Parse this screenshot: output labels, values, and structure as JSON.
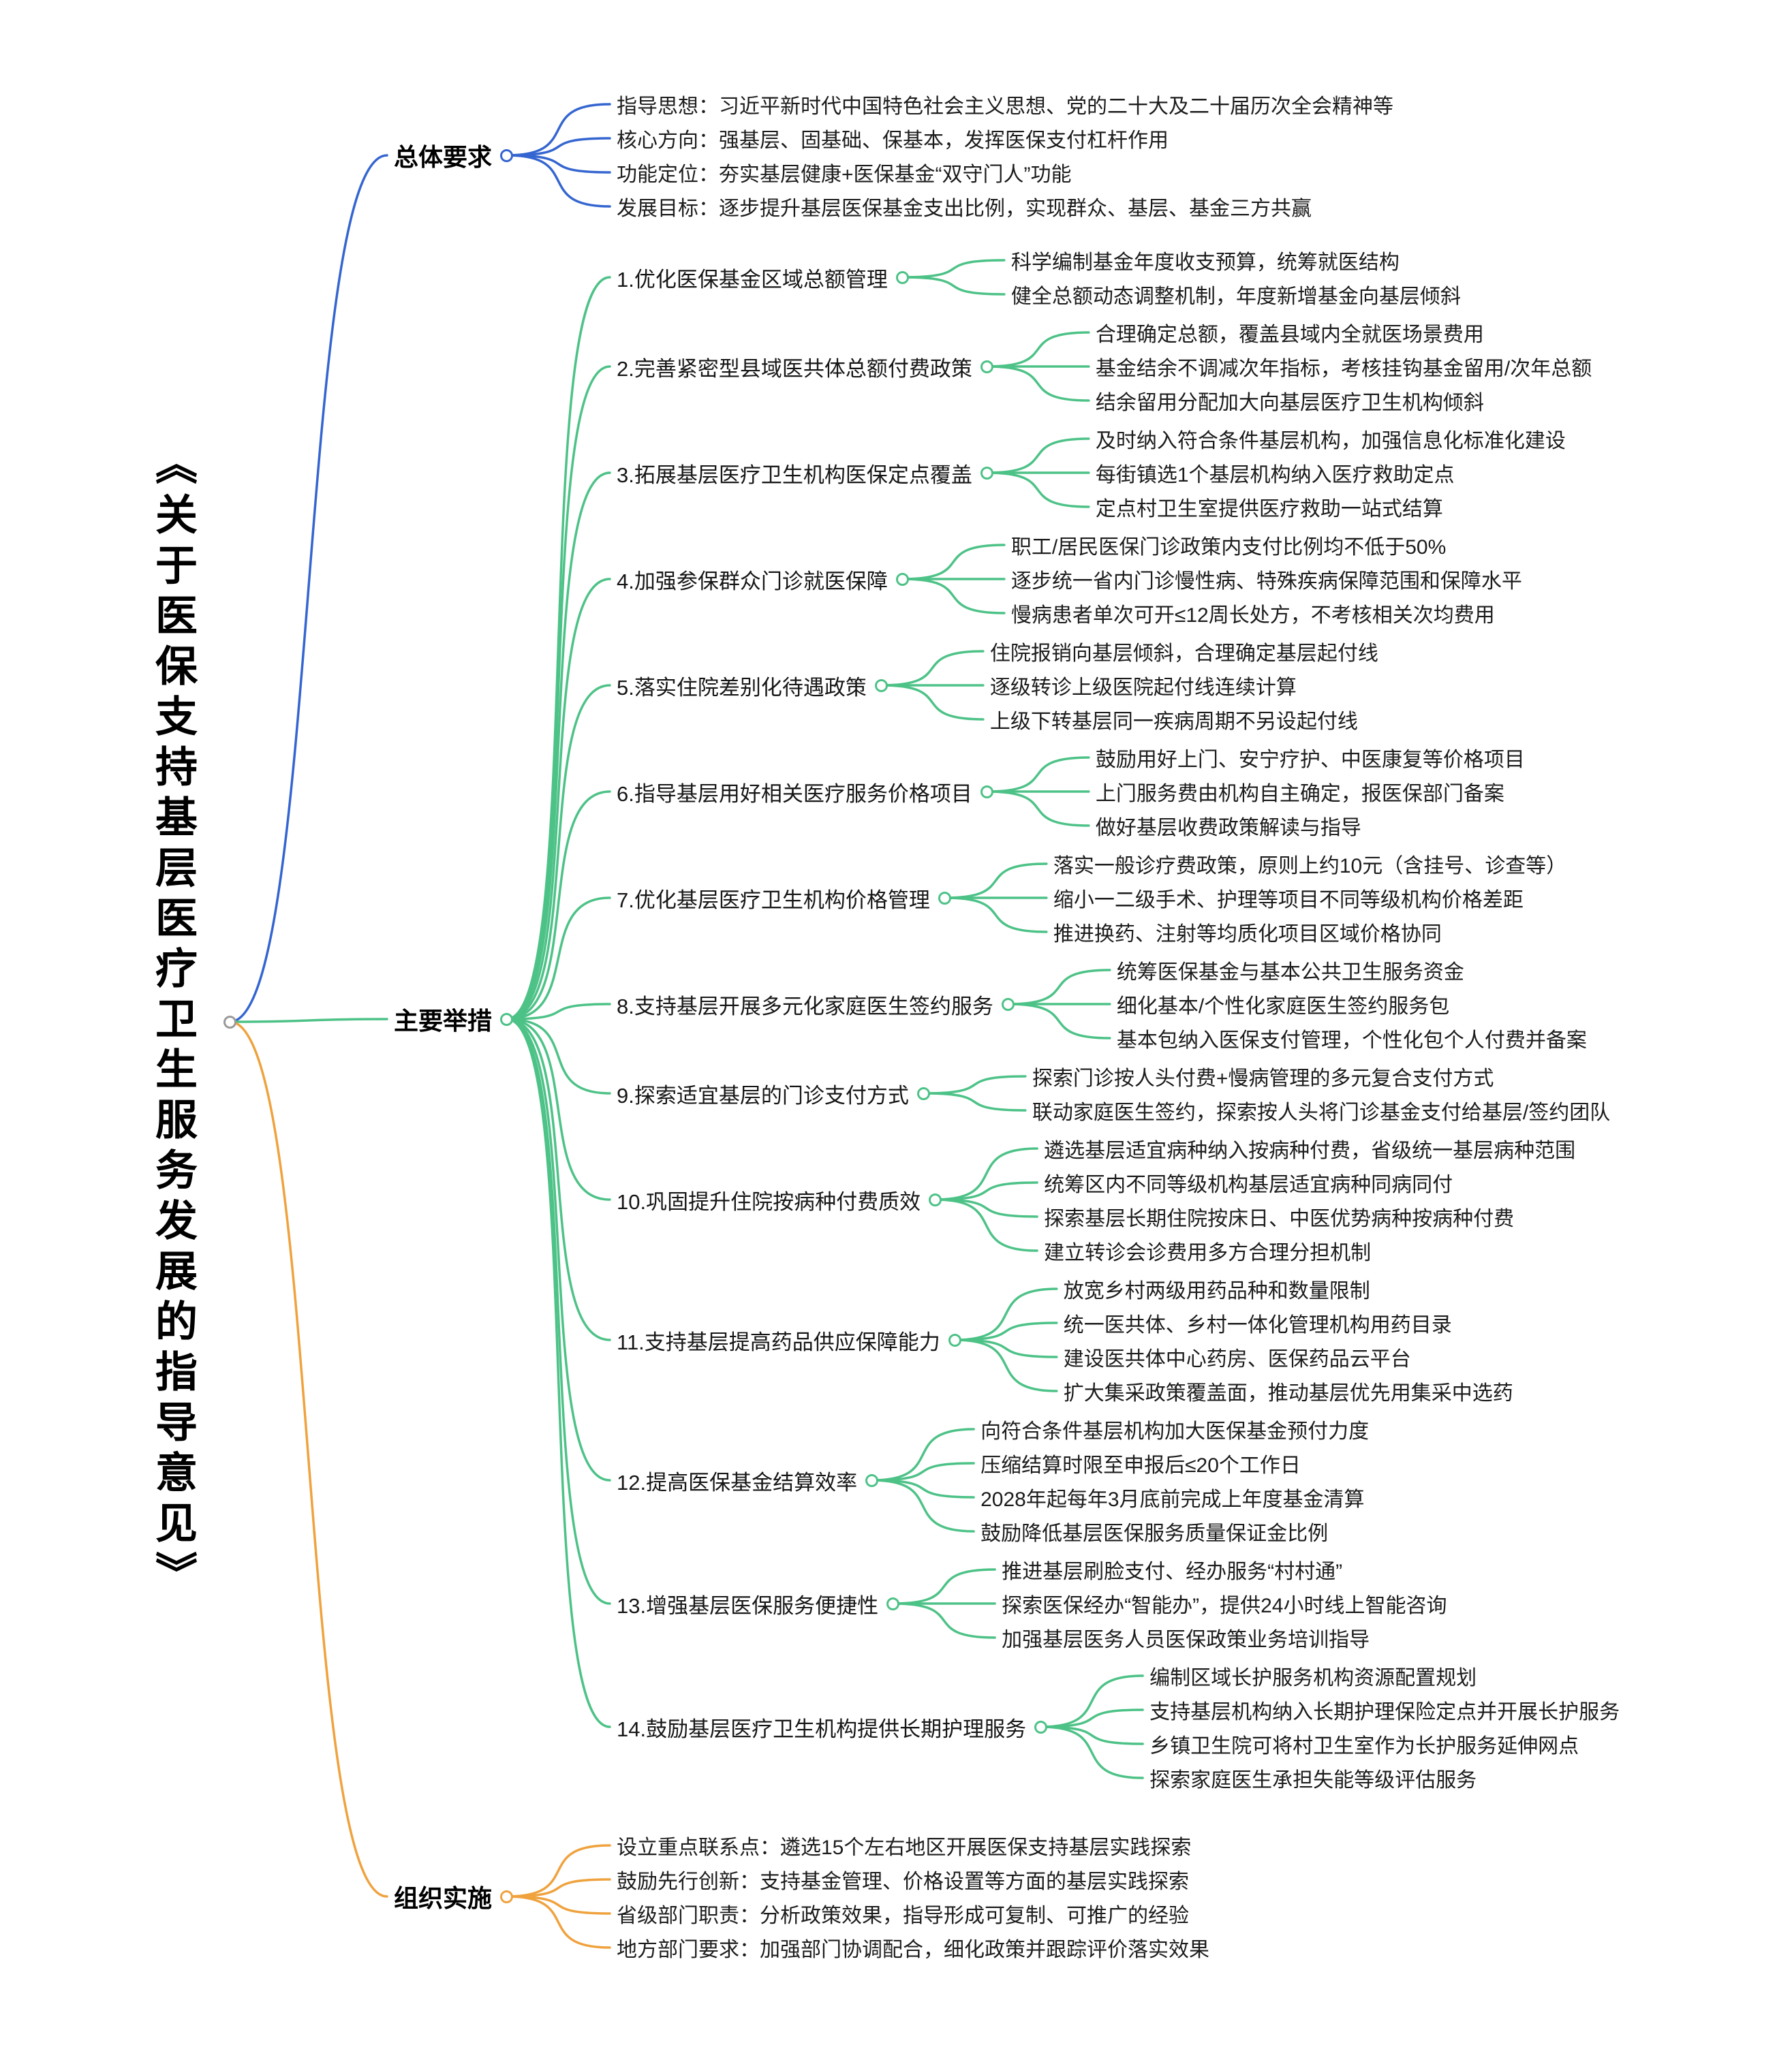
{
  "root": {
    "title": "《关于医保支持基层医疗卫生服务发展的指导意见》"
  },
  "colors": {
    "blue": "#3465d0",
    "green": "#4dc287",
    "orange": "#efa23d"
  },
  "branches": [
    {
      "id": "overall-requirements",
      "label": "总体要求",
      "color": "blue",
      "children": [
        {
          "label": "指导思想：习近平新时代中国特色社会主义思想、党的二十大及二十届历次全会精神等"
        },
        {
          "label": "核心方向：强基层、固基础、保基本，发挥医保支付杠杆作用"
        },
        {
          "label": "功能定位：夯实基层健康+医保基金“双守门人”功能"
        },
        {
          "label": "发展目标：逐步提升基层医保基金支出比例，实现群众、基层、基金三方共赢"
        }
      ]
    },
    {
      "id": "main-measures",
      "label": "主要举措",
      "color": "green",
      "children": [
        {
          "label": "1.优化医保基金区域总额管理",
          "children": [
            {
              "label": "科学编制基金年度收支预算，统筹就医结构"
            },
            {
              "label": "健全总额动态调整机制，年度新增基金向基层倾斜"
            }
          ]
        },
        {
          "label": "2.完善紧密型县域医共体总额付费政策",
          "children": [
            {
              "label": "合理确定总额，覆盖县域内全就医场景费用"
            },
            {
              "label": "基金结余不调减次年指标，考核挂钩基金留用/次年总额"
            },
            {
              "label": "结余留用分配加大向基层医疗卫生机构倾斜"
            }
          ]
        },
        {
          "label": "3.拓展基层医疗卫生机构医保定点覆盖",
          "children": [
            {
              "label": "及时纳入符合条件基层机构，加强信息化标准化建设"
            },
            {
              "label": "每街镇选1个基层机构纳入医疗救助定点"
            },
            {
              "label": "定点村卫生室提供医疗救助一站式结算"
            }
          ]
        },
        {
          "label": "4.加强参保群众门诊就医保障",
          "children": [
            {
              "label": "职工/居民医保门诊政策内支付比例均不低于50%"
            },
            {
              "label": "逐步统一省内门诊慢性病、特殊疾病保障范围和保障水平"
            },
            {
              "label": "慢病患者单次可开≤12周长处方，不考核相关次均费用"
            }
          ]
        },
        {
          "label": "5.落实住院差别化待遇政策",
          "children": [
            {
              "label": "住院报销向基层倾斜，合理确定基层起付线"
            },
            {
              "label": "逐级转诊上级医院起付线连续计算"
            },
            {
              "label": "上级下转基层同一疾病周期不另设起付线"
            }
          ]
        },
        {
          "label": "6.指导基层用好相关医疗服务价格项目",
          "children": [
            {
              "label": "鼓励用好上门、安宁疗护、中医康复等价格项目"
            },
            {
              "label": "上门服务费由机构自主确定，报医保部门备案"
            },
            {
              "label": "做好基层收费政策解读与指导"
            }
          ]
        },
        {
          "label": "7.优化基层医疗卫生机构价格管理",
          "children": [
            {
              "label": "落实一般诊疗费政策，原则上约10元（含挂号、诊查等）"
            },
            {
              "label": "缩小一二级手术、护理等项目不同等级机构价格差距"
            },
            {
              "label": "推进换药、注射等均质化项目区域价格协同"
            }
          ]
        },
        {
          "label": "8.支持基层开展多元化家庭医生签约服务",
          "children": [
            {
              "label": "统筹医保基金与基本公共卫生服务资金"
            },
            {
              "label": "细化基本/个性化家庭医生签约服务包"
            },
            {
              "label": "基本包纳入医保支付管理，个性化包个人付费并备案"
            }
          ]
        },
        {
          "label": "9.探索适宜基层的门诊支付方式",
          "children": [
            {
              "label": "探索门诊按人头付费+慢病管理的多元复合支付方式"
            },
            {
              "label": "联动家庭医生签约，探索按人头将门诊基金支付给基层/签约团队"
            }
          ]
        },
        {
          "label": "10.巩固提升住院按病种付费质效",
          "children": [
            {
              "label": "遴选基层适宜病种纳入按病种付费，省级统一基层病种范围"
            },
            {
              "label": "统筹区内不同等级机构基层适宜病种同病同付"
            },
            {
              "label": "探索基层长期住院按床日、中医优势病种按病种付费"
            },
            {
              "label": "建立转诊会诊费用多方合理分担机制"
            }
          ]
        },
        {
          "label": "11.支持基层提高药品供应保障能力",
          "children": [
            {
              "label": "放宽乡村两级用药品种和数量限制"
            },
            {
              "label": "统一医共体、乡村一体化管理机构用药目录"
            },
            {
              "label": "建设医共体中心药房、医保药品云平台"
            },
            {
              "label": "扩大集采政策覆盖面，推动基层优先用集采中选药"
            }
          ]
        },
        {
          "label": "12.提高医保基金结算效率",
          "children": [
            {
              "label": "向符合条件基层机构加大医保基金预付力度"
            },
            {
              "label": "压缩结算时限至申报后≤20个工作日"
            },
            {
              "label": "2028年起每年3月底前完成上年度基金清算"
            },
            {
              "label": "鼓励降低基层医保服务质量保证金比例"
            }
          ]
        },
        {
          "label": "13.增强基层医保服务便捷性",
          "children": [
            {
              "label": "推进基层刷脸支付、经办服务“村村通”"
            },
            {
              "label": "探索医保经办“智能办”，提供24小时线上智能咨询"
            },
            {
              "label": "加强基层医务人员医保政策业务培训指导"
            }
          ]
        },
        {
          "label": "14.鼓励基层医疗卫生机构提供长期护理服务",
          "children": [
            {
              "label": "编制区域长护服务机构资源配置规划"
            },
            {
              "label": "支持基层机构纳入长期护理保险定点并开展长护服务"
            },
            {
              "label": "乡镇卫生院可将村卫生室作为长护服务延伸网点"
            },
            {
              "label": "探索家庭医生承担失能等级评估服务"
            }
          ]
        }
      ]
    },
    {
      "id": "organization-implementation",
      "label": "组织实施",
      "color": "orange",
      "children": [
        {
          "label": "设立重点联系点：遴选15个左右地区开展医保支持基层实践探索"
        },
        {
          "label": "鼓励先行创新：支持基金管理、价格设置等方面的基层实践探索"
        },
        {
          "label": "省级部门职责：分析政策效果，指导形成可复制、可推广的经验"
        },
        {
          "label": "地方部门要求：加强部门协调配合，细化政策并跟踪评价落实效果"
        }
      ]
    }
  ]
}
